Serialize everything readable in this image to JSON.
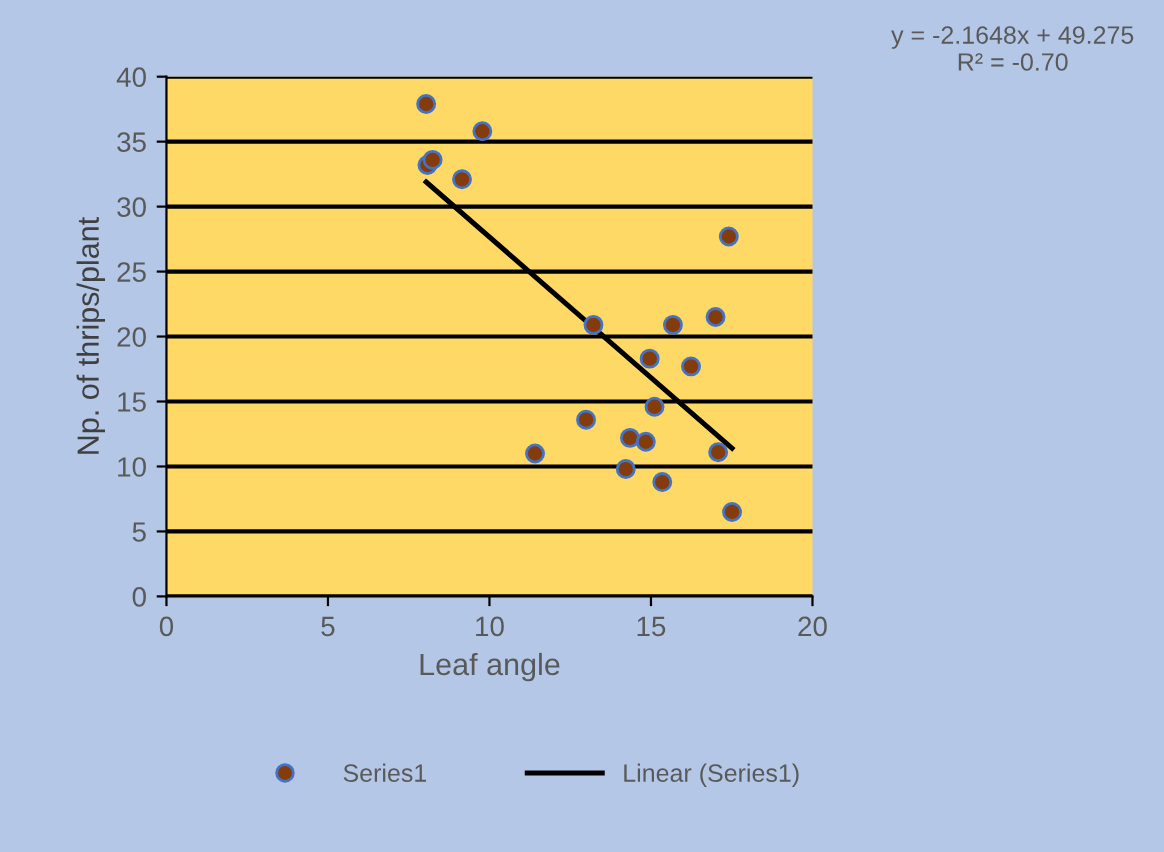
{
  "chart_data": {
    "type": "scatter",
    "xlabel": "Leaf angle",
    "ylabel": "Np. of thrips/plant",
    "xlim": [
      0,
      20
    ],
    "xticks": [
      0,
      5,
      10,
      15,
      20
    ],
    "ylim": [
      0,
      40
    ],
    "yticks": [
      0,
      5,
      10,
      15,
      20,
      25,
      30,
      35,
      40
    ],
    "grid": "y",
    "legend": "bottom",
    "annotations": [
      "y = -2.1648x + 49.275\nR² = -0.70"
    ],
    "series": [
      {
        "name": "Series1",
        "marker": "circle",
        "color": "#843c0c",
        "x": [
          8.04,
          9.78,
          8.08,
          8.24,
          9.15,
          17.41,
          17.0,
          13.22,
          15.68,
          14.96,
          16.24,
          15.11,
          12.99,
          11.41,
          14.35,
          14.84,
          17.08,
          14.22,
          15.35,
          17.51
        ],
        "values": [
          37.9,
          35.8,
          33.2,
          33.6,
          32.1,
          27.7,
          21.5,
          20.9,
          20.9,
          18.3,
          17.7,
          14.6,
          13.6,
          11.0,
          12.2,
          11.9,
          11.1,
          9.8,
          8.8,
          6.5
        ]
      },
      {
        "name": "Linear (Series1)",
        "type": "line",
        "color": "#000000",
        "x": [
          8.04,
          17.51
        ],
        "values": [
          31.9,
          11.4
        ]
      }
    ]
  }
}
